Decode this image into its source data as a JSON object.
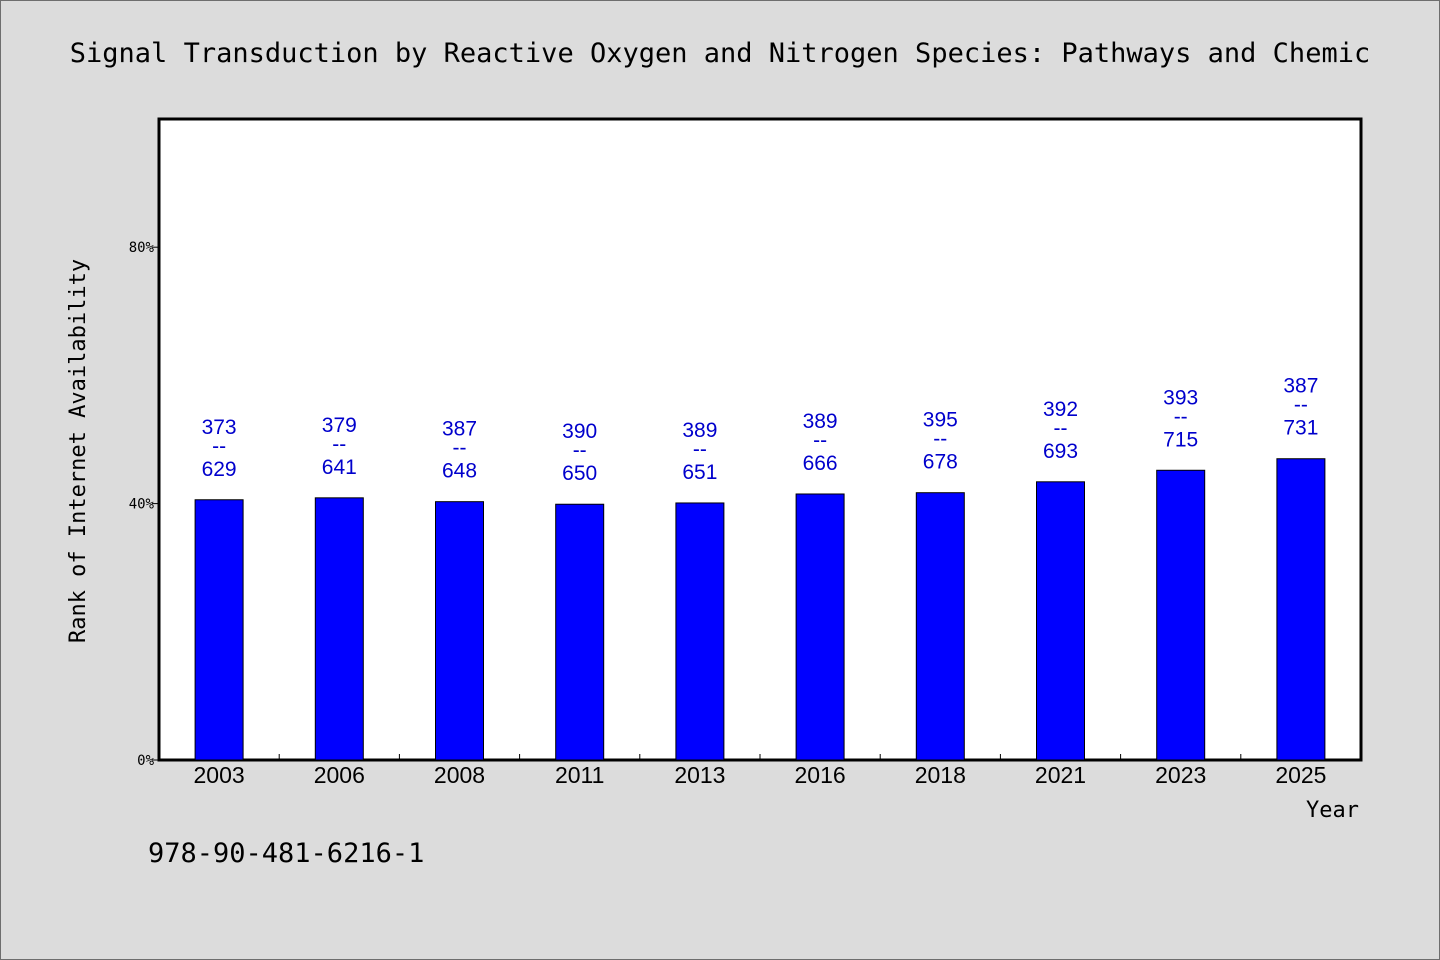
{
  "chart_data": {
    "type": "bar",
    "title": "Signal Transduction by Reactive Oxygen and Nitrogen Species: Pathways and Chemic",
    "xlabel": "Year",
    "ylabel": "Rank of Internet Availability",
    "categories": [
      "2003",
      "2006",
      "2008",
      "2011",
      "2013",
      "2016",
      "2018",
      "2021",
      "2023",
      "2025"
    ],
    "values": [
      40.6,
      40.9,
      40.3,
      39.9,
      40.1,
      41.5,
      41.7,
      43.4,
      45.2,
      47.0
    ],
    "label_top": [
      "373",
      "379",
      "387",
      "390",
      "389",
      "389",
      "395",
      "392",
      "393",
      "387"
    ],
    "label_mid": "--",
    "label_bottom": [
      "629",
      "641",
      "648",
      "650",
      "651",
      "666",
      "678",
      "693",
      "715",
      "731"
    ],
    "ylim": [
      0,
      100
    ],
    "yticks": [
      0,
      40,
      80
    ],
    "ytick_labels": [
      "0%",
      "40%",
      "80%"
    ],
    "bar_color": "#0000ff",
    "label_color": "#0000cc",
    "grid": false
  },
  "footnote": "978-90-481-6216-1"
}
